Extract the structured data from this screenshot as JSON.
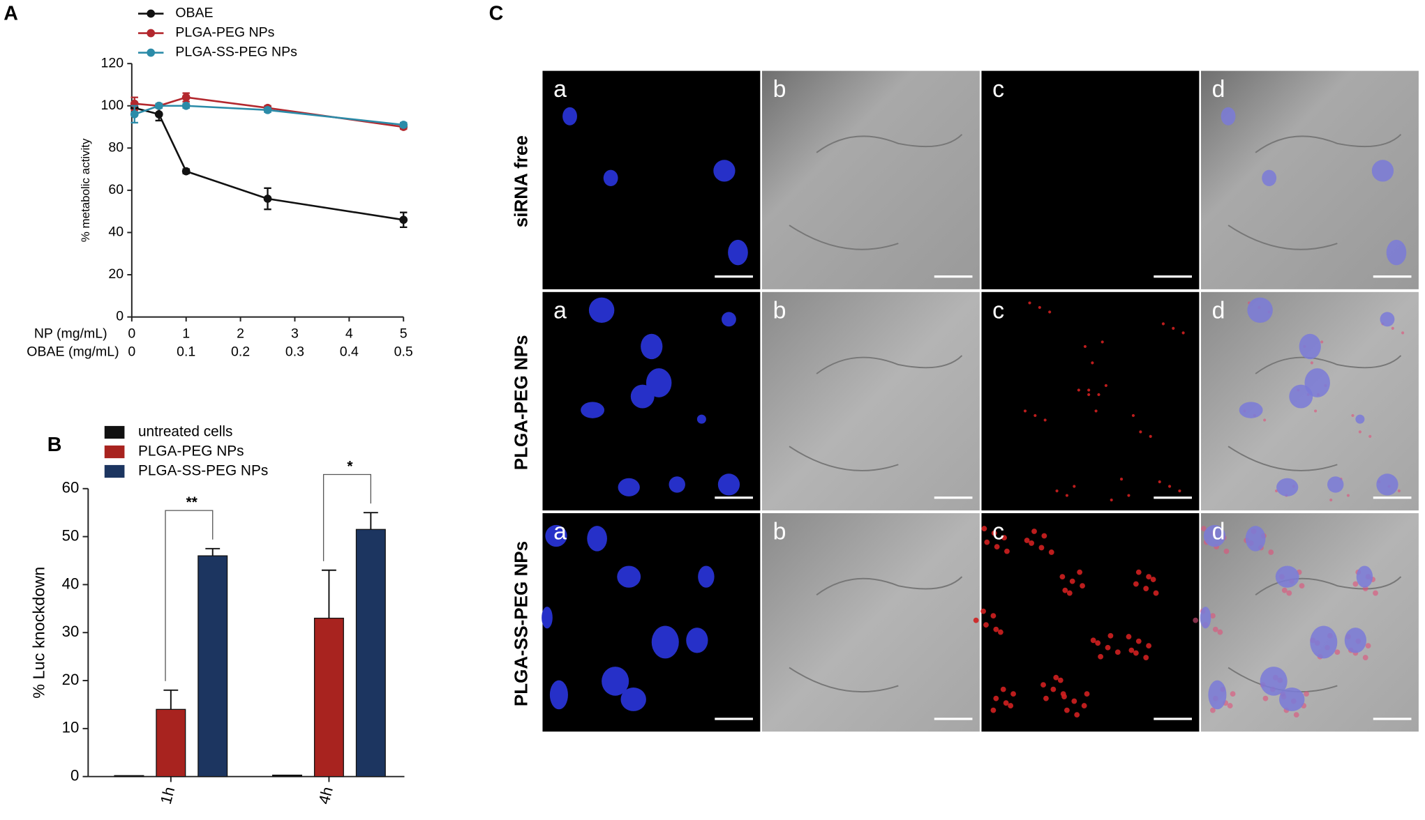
{
  "chart_data": [
    {
      "type": "line",
      "panel": "A",
      "x": [
        0.05,
        0.5,
        1,
        2.5,
        5
      ],
      "series": [
        {
          "name": "OBAE",
          "color": "#111111",
          "values": [
            99,
            96,
            69,
            56,
            46
          ],
          "errors": [
            2,
            3,
            1,
            5,
            3.5
          ]
        },
        {
          "name": "PLGA-PEG NPs",
          "color": "#b3282e",
          "values": [
            101,
            100,
            104,
            99,
            90
          ],
          "errors": [
            3,
            1,
            2,
            1,
            1
          ]
        },
        {
          "name": "PLGA-SS-PEG NPs",
          "color": "#2b8ba8",
          "values": [
            96,
            100,
            100,
            98,
            91
          ],
          "errors": [
            4,
            1,
            1,
            1,
            1
          ]
        }
      ],
      "xlabel": "NP (mg/mL)",
      "xlim": [
        0,
        5
      ],
      "xticks": [
        0,
        1,
        2,
        3,
        4,
        5
      ],
      "x2label": "OBAE (mg/mL)",
      "x2lim": [
        0,
        0.5
      ],
      "x2ticks": [
        0,
        0.1,
        0.2,
        0.3,
        0.4,
        0.5
      ],
      "ylabel": "% metabolic activity",
      "ylim": [
        0,
        120
      ],
      "yticks": [
        0,
        20,
        40,
        60,
        80,
        100,
        120
      ],
      "legend": "top"
    },
    {
      "type": "bar",
      "panel": "B",
      "categories": [
        "1h",
        "4h"
      ],
      "series": [
        {
          "name": "untreated cells",
          "color": "#111111",
          "values": [
            0.2,
            0.3
          ],
          "errors": [
            0,
            0
          ]
        },
        {
          "name": "PLGA-PEG NPs",
          "color": "#a8231f",
          "values": [
            14,
            33
          ],
          "errors": [
            4,
            10
          ]
        },
        {
          "name": "PLGA-SS-PEG NPs",
          "color": "#1c3560",
          "values": [
            46,
            51.5
          ],
          "errors": [
            1.5,
            3.5
          ]
        }
      ],
      "significance": [
        "**",
        "*"
      ],
      "ylabel": "% Luc knockdown",
      "ylim": [
        0,
        60
      ],
      "yticks": [
        0,
        10,
        20,
        30,
        40,
        50,
        60
      ],
      "legend": "top"
    }
  ],
  "panel_c": {
    "label": "C",
    "rows": [
      "siRNA free",
      "PLGA-PEG NPs",
      "PLGA-SS-PEG NPs"
    ],
    "columns": [
      "a",
      "b",
      "c",
      "d"
    ]
  }
}
